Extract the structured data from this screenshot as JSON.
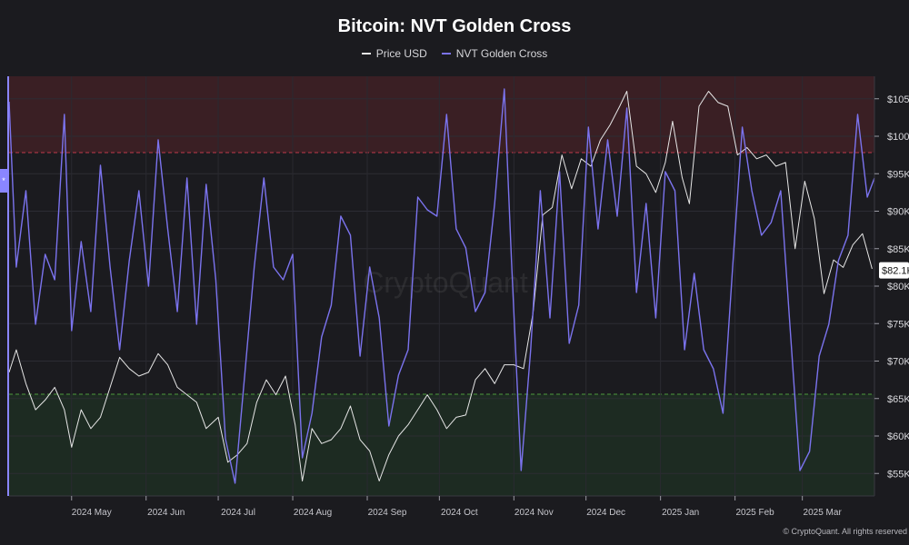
{
  "header": {
    "title": "Bitcoin: NVT Golden Cross"
  },
  "legend": {
    "price_label": "Price USD",
    "nvt_label": "NVT Golden Cross"
  },
  "side_marker": {
    "text": "*"
  },
  "copyright": "© CryptoQuant. All rights reserved",
  "watermark": "CryptoQuant",
  "colors": {
    "background": "#1b1b1f",
    "price": "#e6e6e6",
    "nvt": "#7b73ee",
    "upper_band": "#3a1f24",
    "lower_band": "#1d2b22",
    "upper_line": "#c0394b",
    "lower_line": "#4e9a3c",
    "last_price_box": "#ffffff"
  },
  "chart_data": {
    "type": "line",
    "title": "Bitcoin: NVT Golden Cross",
    "x_range": [
      "2024-04-05",
      "2025-03-31"
    ],
    "x_ticks": [
      {
        "date": "2024-05-01",
        "label": "2024 May"
      },
      {
        "date": "2024-06-01",
        "label": "2024 Jun"
      },
      {
        "date": "2024-07-01",
        "label": "2024 Jul"
      },
      {
        "date": "2024-08-01",
        "label": "2024 Aug"
      },
      {
        "date": "2024-09-01",
        "label": "2024 Sep"
      },
      {
        "date": "2024-10-01",
        "label": "2024 Oct"
      },
      {
        "date": "2024-11-01",
        "label": "2024 Nov"
      },
      {
        "date": "2024-12-01",
        "label": "2024 Dec"
      },
      {
        "date": "2025-01-01",
        "label": "2025 Jan"
      },
      {
        "date": "2025-02-01",
        "label": "2025 Feb"
      },
      {
        "date": "2025-03-01",
        "label": "2025 Mar"
      }
    ],
    "y_right": {
      "range": [
        52000,
        108000
      ],
      "ticks": [
        {
          "value": 55000,
          "label": "$55K"
        },
        {
          "value": 60000,
          "label": "$60K"
        },
        {
          "value": 65000,
          "label": "$65K"
        },
        {
          "value": 70000,
          "label": "$70K"
        },
        {
          "value": 75000,
          "label": "$75K"
        },
        {
          "value": 80000,
          "label": "$80K"
        },
        {
          "value": 85000,
          "label": "$85K"
        },
        {
          "value": 90000,
          "label": "$90K"
        },
        {
          "value": 95000,
          "label": "$95K"
        },
        {
          "value": 100000,
          "label": "$100K"
        },
        {
          "value": 105000,
          "label": "$105K"
        }
      ],
      "last_value": 82100,
      "last_value_label": "$82.1K"
    },
    "nvt_bands": {
      "upper_threshold": 2.2,
      "lower_threshold": -1.6,
      "range": [
        -3.2,
        3.4
      ]
    },
    "grid": true,
    "legend_position": "top-center",
    "series": [
      {
        "name": "Price USD",
        "axis": "right",
        "points": [
          [
            "2024-04-05",
            68500
          ],
          [
            "2024-04-08",
            71500
          ],
          [
            "2024-04-12",
            67000
          ],
          [
            "2024-04-16",
            63500
          ],
          [
            "2024-04-20",
            64800
          ],
          [
            "2024-04-24",
            66500
          ],
          [
            "2024-04-28",
            63500
          ],
          [
            "2024-05-01",
            58500
          ],
          [
            "2024-05-05",
            63500
          ],
          [
            "2024-05-09",
            61000
          ],
          [
            "2024-05-13",
            62500
          ],
          [
            "2024-05-17",
            66500
          ],
          [
            "2024-05-21",
            70500
          ],
          [
            "2024-05-25",
            69000
          ],
          [
            "2024-05-29",
            68000
          ],
          [
            "2024-06-02",
            68500
          ],
          [
            "2024-06-06",
            71000
          ],
          [
            "2024-06-10",
            69500
          ],
          [
            "2024-06-14",
            66500
          ],
          [
            "2024-06-18",
            65500
          ],
          [
            "2024-06-22",
            64500
          ],
          [
            "2024-06-26",
            61000
          ],
          [
            "2024-07-01",
            62500
          ],
          [
            "2024-07-05",
            56500
          ],
          [
            "2024-07-09",
            57500
          ],
          [
            "2024-07-13",
            59000
          ],
          [
            "2024-07-17",
            64500
          ],
          [
            "2024-07-21",
            67500
          ],
          [
            "2024-07-25",
            65500
          ],
          [
            "2024-07-29",
            68000
          ],
          [
            "2024-08-02",
            61500
          ],
          [
            "2024-08-05",
            54000
          ],
          [
            "2024-08-09",
            61000
          ],
          [
            "2024-08-13",
            59000
          ],
          [
            "2024-08-17",
            59500
          ],
          [
            "2024-08-21",
            61000
          ],
          [
            "2024-08-25",
            64000
          ],
          [
            "2024-08-29",
            59500
          ],
          [
            "2024-09-02",
            58000
          ],
          [
            "2024-09-06",
            54000
          ],
          [
            "2024-09-10",
            57500
          ],
          [
            "2024-09-14",
            60000
          ],
          [
            "2024-09-18",
            61500
          ],
          [
            "2024-09-22",
            63500
          ],
          [
            "2024-09-26",
            65500
          ],
          [
            "2024-09-30",
            63500
          ],
          [
            "2024-10-04",
            61000
          ],
          [
            "2024-10-08",
            62500
          ],
          [
            "2024-10-12",
            62800
          ],
          [
            "2024-10-16",
            67500
          ],
          [
            "2024-10-20",
            69000
          ],
          [
            "2024-10-24",
            67000
          ],
          [
            "2024-10-28",
            69500
          ],
          [
            "2024-11-01",
            69500
          ],
          [
            "2024-11-05",
            69000
          ],
          [
            "2024-11-09",
            76500
          ],
          [
            "2024-11-13",
            89500
          ],
          [
            "2024-11-17",
            90500
          ],
          [
            "2024-11-21",
            97500
          ],
          [
            "2024-11-25",
            93000
          ],
          [
            "2024-11-29",
            97000
          ],
          [
            "2024-12-03",
            96000
          ],
          [
            "2024-12-07",
            99500
          ],
          [
            "2024-12-11",
            101500
          ],
          [
            "2024-12-15",
            104000
          ],
          [
            "2024-12-18",
            106000
          ],
          [
            "2024-12-22",
            96000
          ],
          [
            "2024-12-26",
            95000
          ],
          [
            "2024-12-30",
            92500
          ],
          [
            "2025-01-03",
            96500
          ],
          [
            "2025-01-06",
            102000
          ],
          [
            "2025-01-10",
            94500
          ],
          [
            "2025-01-13",
            91000
          ],
          [
            "2025-01-17",
            104000
          ],
          [
            "2025-01-21",
            106000
          ],
          [
            "2025-01-25",
            104500
          ],
          [
            "2025-01-29",
            104000
          ],
          [
            "2025-02-02",
            97500
          ],
          [
            "2025-02-06",
            98500
          ],
          [
            "2025-02-10",
            97000
          ],
          [
            "2025-02-14",
            97500
          ],
          [
            "2025-02-18",
            96000
          ],
          [
            "2025-02-22",
            96500
          ],
          [
            "2025-02-26",
            85000
          ],
          [
            "2025-03-02",
            94000
          ],
          [
            "2025-03-06",
            89000
          ],
          [
            "2025-03-10",
            79000
          ],
          [
            "2025-03-14",
            83500
          ],
          [
            "2025-03-18",
            82500
          ],
          [
            "2025-03-22",
            85500
          ],
          [
            "2025-03-26",
            87000
          ],
          [
            "2025-03-30",
            82300
          ]
        ]
      },
      {
        "name": "NVT Golden Cross",
        "axis": "left",
        "points": [
          [
            "2024-04-05",
            3.0
          ],
          [
            "2024-04-08",
            0.4
          ],
          [
            "2024-04-12",
            1.6
          ],
          [
            "2024-04-16",
            -0.5
          ],
          [
            "2024-04-20",
            0.6
          ],
          [
            "2024-04-24",
            0.2
          ],
          [
            "2024-04-28",
            2.8
          ],
          [
            "2024-05-01",
            -0.6
          ],
          [
            "2024-05-05",
            0.8
          ],
          [
            "2024-05-09",
            -0.3
          ],
          [
            "2024-05-13",
            2.0
          ],
          [
            "2024-05-17",
            0.4
          ],
          [
            "2024-05-21",
            -0.9
          ],
          [
            "2024-05-25",
            0.5
          ],
          [
            "2024-05-29",
            1.6
          ],
          [
            "2024-06-02",
            0.1
          ],
          [
            "2024-06-06",
            2.4
          ],
          [
            "2024-06-10",
            1.0
          ],
          [
            "2024-06-14",
            -0.3
          ],
          [
            "2024-06-18",
            1.8
          ],
          [
            "2024-06-22",
            -0.5
          ],
          [
            "2024-06-26",
            1.7
          ],
          [
            "2024-06-30",
            0.2
          ],
          [
            "2024-07-04",
            -2.3
          ],
          [
            "2024-07-08",
            -3.0
          ],
          [
            "2024-07-12",
            -1.3
          ],
          [
            "2024-07-16",
            0.4
          ],
          [
            "2024-07-20",
            1.8
          ],
          [
            "2024-07-24",
            0.4
          ],
          [
            "2024-07-28",
            0.2
          ],
          [
            "2024-08-01",
            0.6
          ],
          [
            "2024-08-05",
            -2.6
          ],
          [
            "2024-08-09",
            -1.9
          ],
          [
            "2024-08-13",
            -0.7
          ],
          [
            "2024-08-17",
            -0.2
          ],
          [
            "2024-08-21",
            1.2
          ],
          [
            "2024-08-25",
            0.9
          ],
          [
            "2024-08-29",
            -1.0
          ],
          [
            "2024-09-02",
            0.4
          ],
          [
            "2024-09-06",
            -0.4
          ],
          [
            "2024-09-10",
            -2.1
          ],
          [
            "2024-09-14",
            -1.3
          ],
          [
            "2024-09-18",
            -0.9
          ],
          [
            "2024-09-22",
            1.5
          ],
          [
            "2024-09-26",
            1.3
          ],
          [
            "2024-09-30",
            1.2
          ],
          [
            "2024-10-04",
            2.8
          ],
          [
            "2024-10-08",
            1.0
          ],
          [
            "2024-10-12",
            0.7
          ],
          [
            "2024-10-16",
            -0.3
          ],
          [
            "2024-10-20",
            0.0
          ],
          [
            "2024-10-24",
            1.4
          ],
          [
            "2024-10-28",
            3.2
          ],
          [
            "2024-10-31",
            0.5
          ],
          [
            "2024-11-04",
            -2.8
          ],
          [
            "2024-11-08",
            -0.9
          ],
          [
            "2024-11-12",
            1.6
          ],
          [
            "2024-11-16",
            -0.4
          ],
          [
            "2024-11-20",
            1.9
          ],
          [
            "2024-11-24",
            -0.8
          ],
          [
            "2024-11-28",
            -0.2
          ],
          [
            "2024-12-02",
            2.6
          ],
          [
            "2024-12-06",
            1.0
          ],
          [
            "2024-12-10",
            2.4
          ],
          [
            "2024-12-14",
            1.2
          ],
          [
            "2024-12-18",
            2.9
          ],
          [
            "2024-12-22",
            0.0
          ],
          [
            "2024-12-26",
            1.4
          ],
          [
            "2024-12-30",
            -0.4
          ],
          [
            "2025-01-03",
            1.9
          ],
          [
            "2025-01-07",
            1.6
          ],
          [
            "2025-01-11",
            -0.9
          ],
          [
            "2025-01-15",
            0.3
          ],
          [
            "2025-01-19",
            -0.9
          ],
          [
            "2025-01-23",
            -1.2
          ],
          [
            "2025-01-27",
            -1.9
          ],
          [
            "2025-01-31",
            0.4
          ],
          [
            "2025-02-04",
            2.6
          ],
          [
            "2025-02-08",
            1.6
          ],
          [
            "2025-02-12",
            0.9
          ],
          [
            "2025-02-16",
            1.1
          ],
          [
            "2025-02-20",
            1.6
          ],
          [
            "2025-02-24",
            -0.6
          ],
          [
            "2025-02-28",
            -2.8
          ],
          [
            "2025-03-04",
            -2.5
          ],
          [
            "2025-03-08",
            -1.0
          ],
          [
            "2025-03-12",
            -0.5
          ],
          [
            "2025-03-16",
            0.5
          ],
          [
            "2025-03-20",
            0.9
          ],
          [
            "2025-03-24",
            2.8
          ],
          [
            "2025-03-28",
            1.5
          ],
          [
            "2025-03-31",
            1.8
          ]
        ]
      }
    ]
  }
}
